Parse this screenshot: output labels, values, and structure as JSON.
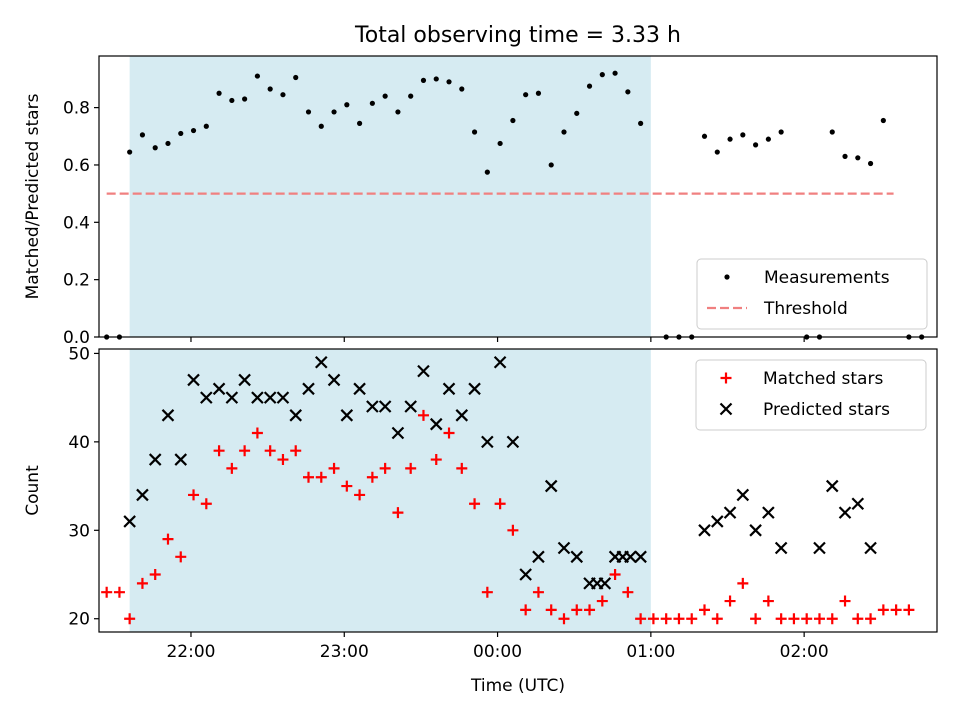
{
  "figure_title": "Total observing time = 3.33 h",
  "colors": {
    "observing_window": "#add8e6",
    "measurements": "#000000",
    "threshold": "#f08080",
    "matched": "#ff0000",
    "predicted": "#000000"
  },
  "chart_data": [
    {
      "type": "scatter",
      "title": "Total observing time = 3.33 h",
      "xlabel": "",
      "ylabel": "Matched/Predicted stars",
      "x_axis": "time",
      "xlim": [
        "21:24",
        "02:52"
      ],
      "ylim": [
        0,
        0.98
      ],
      "yticks": [
        "0.0",
        "0.2",
        "0.4",
        "0.6",
        "0.8"
      ],
      "xtick_labels_shown": false,
      "shaded_window": {
        "start": "21:36",
        "end": "01:00"
      },
      "legend": {
        "location": "lower right",
        "entries": [
          "Measurements",
          "Threshold"
        ]
      },
      "threshold": {
        "name": "Threshold",
        "value": 0.5,
        "x_start": "21:27",
        "x_end": "02:35",
        "style": "dashed"
      },
      "series": [
        {
          "name": "Measurements",
          "marker": "dot",
          "points": [
            [
              "21:27",
              0.0
            ],
            [
              "21:32",
              0.0
            ],
            [
              "21:36",
              0.645
            ],
            [
              "21:41",
              0.705
            ],
            [
              "21:46",
              0.66
            ],
            [
              "21:51",
              0.675
            ],
            [
              "21:56",
              0.71
            ],
            [
              "22:01",
              0.72
            ],
            [
              "22:06",
              0.735
            ],
            [
              "22:11",
              0.85
            ],
            [
              "22:16",
              0.825
            ],
            [
              "22:21",
              0.83
            ],
            [
              "22:26",
              0.91
            ],
            [
              "22:31",
              0.865
            ],
            [
              "22:36",
              0.845
            ],
            [
              "22:41",
              0.905
            ],
            [
              "22:46",
              0.785
            ],
            [
              "22:51",
              0.735
            ],
            [
              "22:56",
              0.785
            ],
            [
              "23:01",
              0.81
            ],
            [
              "23:06",
              0.745
            ],
            [
              "23:11",
              0.815
            ],
            [
              "23:16",
              0.84
            ],
            [
              "23:21",
              0.785
            ],
            [
              "23:26",
              0.84
            ],
            [
              "23:31",
              0.895
            ],
            [
              "23:36",
              0.9
            ],
            [
              "23:41",
              0.89
            ],
            [
              "23:46",
              0.865
            ],
            [
              "23:51",
              0.715
            ],
            [
              "23:56",
              0.575
            ],
            [
              "00:01",
              0.675
            ],
            [
              "00:06",
              0.755
            ],
            [
              "00:11",
              0.845
            ],
            [
              "00:16",
              0.85
            ],
            [
              "00:21",
              0.6
            ],
            [
              "00:26",
              0.715
            ],
            [
              "00:31",
              0.78
            ],
            [
              "00:36",
              0.875
            ],
            [
              "00:41",
              0.915
            ],
            [
              "00:46",
              0.92
            ],
            [
              "00:51",
              0.855
            ],
            [
              "00:56",
              0.745
            ],
            [
              "01:06",
              0.0
            ],
            [
              "01:11",
              0.0
            ],
            [
              "01:16",
              0.0
            ],
            [
              "01:21",
              0.7
            ],
            [
              "01:26",
              0.645
            ],
            [
              "01:31",
              0.69
            ],
            [
              "01:36",
              0.705
            ],
            [
              "01:41",
              0.67
            ],
            [
              "01:46",
              0.69
            ],
            [
              "01:51",
              0.715
            ],
            [
              "02:01",
              0.0
            ],
            [
              "02:06",
              0.0
            ],
            [
              "02:11",
              0.715
            ],
            [
              "02:16",
              0.63
            ],
            [
              "02:21",
              0.625
            ],
            [
              "02:26",
              0.605
            ],
            [
              "02:31",
              0.755
            ],
            [
              "02:41",
              0.0
            ],
            [
              "02:46",
              0.0
            ]
          ]
        }
      ]
    },
    {
      "type": "scatter",
      "title": "",
      "xlabel": "Time (UTC)",
      "ylabel": "Count",
      "x_axis": "time",
      "xlim": [
        "21:24",
        "02:52"
      ],
      "ylim": [
        18.5,
        50.5
      ],
      "yticks": [
        "20",
        "30",
        "40",
        "50"
      ],
      "xticks": [
        "22:00",
        "23:00",
        "00:00",
        "01:00",
        "02:00"
      ],
      "shaded_window": {
        "start": "21:36",
        "end": "01:00"
      },
      "legend": {
        "location": "upper right",
        "entries": [
          "Matched stars",
          "Predicted stars"
        ]
      },
      "series": [
        {
          "name": "Matched stars",
          "marker": "plus",
          "points": [
            [
              "21:27",
              23
            ],
            [
              "21:32",
              23
            ],
            [
              "21:36",
              20
            ],
            [
              "21:41",
              24
            ],
            [
              "21:46",
              25
            ],
            [
              "21:51",
              29
            ],
            [
              "21:56",
              27
            ],
            [
              "22:01",
              34
            ],
            [
              "22:06",
              33
            ],
            [
              "22:11",
              39
            ],
            [
              "22:16",
              37
            ],
            [
              "22:21",
              39
            ],
            [
              "22:26",
              41
            ],
            [
              "22:31",
              39
            ],
            [
              "22:36",
              38
            ],
            [
              "22:41",
              39
            ],
            [
              "22:46",
              36
            ],
            [
              "22:51",
              36
            ],
            [
              "22:56",
              37
            ],
            [
              "23:01",
              35
            ],
            [
              "23:06",
              34
            ],
            [
              "23:11",
              36
            ],
            [
              "23:16",
              37
            ],
            [
              "23:21",
              32
            ],
            [
              "23:26",
              37
            ],
            [
              "23:31",
              43
            ],
            [
              "23:36",
              38
            ],
            [
              "23:41",
              41
            ],
            [
              "23:46",
              37
            ],
            [
              "23:51",
              33
            ],
            [
              "23:56",
              23
            ],
            [
              "00:01",
              33
            ],
            [
              "00:06",
              30
            ],
            [
              "00:11",
              21
            ],
            [
              "00:16",
              23
            ],
            [
              "00:21",
              21
            ],
            [
              "00:26",
              20
            ],
            [
              "00:31",
              21
            ],
            [
              "00:36",
              21
            ],
            [
              "00:41",
              22
            ],
            [
              "00:46",
              25
            ],
            [
              "00:51",
              23
            ],
            [
              "00:56",
              20
            ],
            [
              "01:01",
              20
            ],
            [
              "01:06",
              20
            ],
            [
              "01:11",
              20
            ],
            [
              "01:16",
              20
            ],
            [
              "01:21",
              21
            ],
            [
              "01:26",
              20
            ],
            [
              "01:31",
              22
            ],
            [
              "01:36",
              24
            ],
            [
              "01:41",
              20
            ],
            [
              "01:46",
              22
            ],
            [
              "01:51",
              20
            ],
            [
              "01:56",
              20
            ],
            [
              "02:01",
              20
            ],
            [
              "02:06",
              20
            ],
            [
              "02:11",
              20
            ],
            [
              "02:16",
              22
            ],
            [
              "02:21",
              20
            ],
            [
              "02:26",
              20
            ],
            [
              "02:31",
              21
            ],
            [
              "02:36",
              21
            ],
            [
              "02:41",
              21
            ]
          ]
        },
        {
          "name": "Predicted stars",
          "marker": "x",
          "points": [
            [
              "21:36",
              31
            ],
            [
              "21:41",
              34
            ],
            [
              "21:46",
              38
            ],
            [
              "21:51",
              43
            ],
            [
              "21:56",
              38
            ],
            [
              "22:01",
              47
            ],
            [
              "22:06",
              45
            ],
            [
              "22:11",
              46
            ],
            [
              "22:16",
              45
            ],
            [
              "22:21",
              47
            ],
            [
              "22:26",
              45
            ],
            [
              "22:31",
              45
            ],
            [
              "22:36",
              45
            ],
            [
              "22:41",
              43
            ],
            [
              "22:46",
              46
            ],
            [
              "22:51",
              49
            ],
            [
              "22:56",
              47
            ],
            [
              "23:01",
              43
            ],
            [
              "23:06",
              46
            ],
            [
              "23:11",
              44
            ],
            [
              "23:16",
              44
            ],
            [
              "23:21",
              41
            ],
            [
              "23:26",
              44
            ],
            [
              "23:31",
              48
            ],
            [
              "23:36",
              42
            ],
            [
              "23:41",
              46
            ],
            [
              "23:46",
              43
            ],
            [
              "23:51",
              46
            ],
            [
              "23:56",
              40
            ],
            [
              "00:01",
              49
            ],
            [
              "00:06",
              40
            ],
            [
              "00:11",
              25
            ],
            [
              "00:16",
              27
            ],
            [
              "00:21",
              35
            ],
            [
              "00:26",
              28
            ],
            [
              "00:31",
              27
            ],
            [
              "00:36",
              24
            ],
            [
              "00:39",
              24
            ],
            [
              "00:42",
              24
            ],
            [
              "00:46",
              27
            ],
            [
              "00:49",
              27
            ],
            [
              "00:52",
              27
            ],
            [
              "00:56",
              27
            ],
            [
              "01:21",
              30
            ],
            [
              "01:26",
              31
            ],
            [
              "01:31",
              32
            ],
            [
              "01:36",
              34
            ],
            [
              "01:41",
              30
            ],
            [
              "01:46",
              32
            ],
            [
              "01:51",
              28
            ],
            [
              "02:06",
              28
            ],
            [
              "02:11",
              35
            ],
            [
              "02:16",
              32
            ],
            [
              "02:21",
              33
            ],
            [
              "02:26",
              28
            ]
          ]
        }
      ]
    }
  ]
}
